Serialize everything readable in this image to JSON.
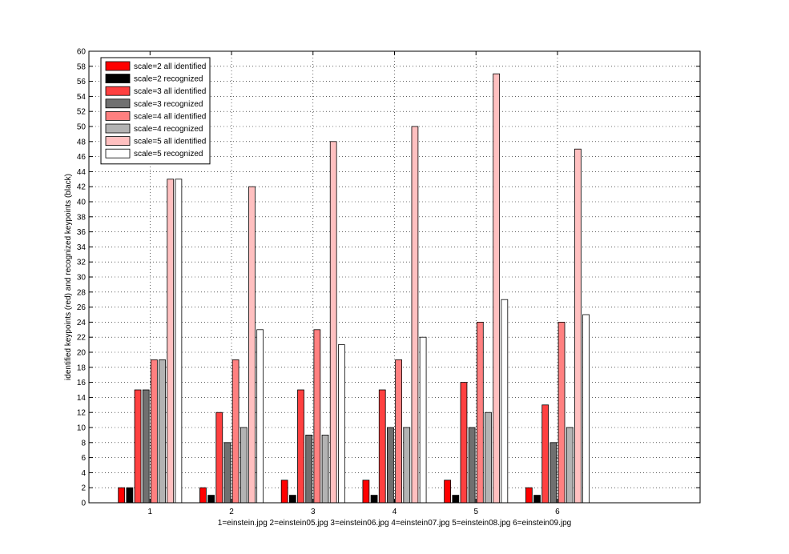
{
  "chart_data": {
    "type": "bar",
    "title": "",
    "xlabel": "1=einstein.jpg 2=einstein05.jpg 3=einstein06.jpg 4=einstein07.jpg 5=einstein08.jpg 6=einstein09.jpg",
    "ylabel": "identified keypoints (red) and recognized keypoints (black)",
    "categories": [
      "1",
      "2",
      "3",
      "4",
      "5",
      "6"
    ],
    "xlim": [
      0.25,
      7.75
    ],
    "ylim": [
      0,
      60
    ],
    "yticks": [
      0,
      2,
      4,
      6,
      8,
      10,
      12,
      14,
      16,
      18,
      20,
      22,
      24,
      26,
      28,
      30,
      32,
      34,
      36,
      38,
      40,
      42,
      44,
      46,
      48,
      50,
      52,
      54,
      56,
      58,
      60
    ],
    "grid": true,
    "legend_position": "top-left",
    "series": [
      {
        "name": "scale=2 all identified",
        "color": "#ff0000",
        "values": [
          2,
          2,
          3,
          3,
          3,
          2
        ]
      },
      {
        "name": "scale=2 recognized",
        "color": "#000000",
        "values": [
          2,
          1,
          1,
          1,
          1,
          1
        ]
      },
      {
        "name": "scale=3 all identified",
        "color": "#ff4040",
        "values": [
          15,
          12,
          15,
          15,
          16,
          13
        ]
      },
      {
        "name": "scale=3 recognized",
        "color": "#707070",
        "values": [
          15,
          8,
          9,
          10,
          10,
          8
        ]
      },
      {
        "name": "scale=4 all identified",
        "color": "#ff8080",
        "values": [
          19,
          19,
          23,
          19,
          24,
          24
        ]
      },
      {
        "name": "scale=4 recognized",
        "color": "#b3b3b3",
        "values": [
          19,
          10,
          9,
          10,
          12,
          10
        ]
      },
      {
        "name": "scale=5 all identified",
        "color": "#ffc0c0",
        "values": [
          43,
          42,
          48,
          50,
          57,
          47
        ]
      },
      {
        "name": "scale=5 recognized",
        "color": "#ffffff",
        "values": [
          43,
          23,
          21,
          22,
          27,
          25
        ]
      }
    ]
  }
}
